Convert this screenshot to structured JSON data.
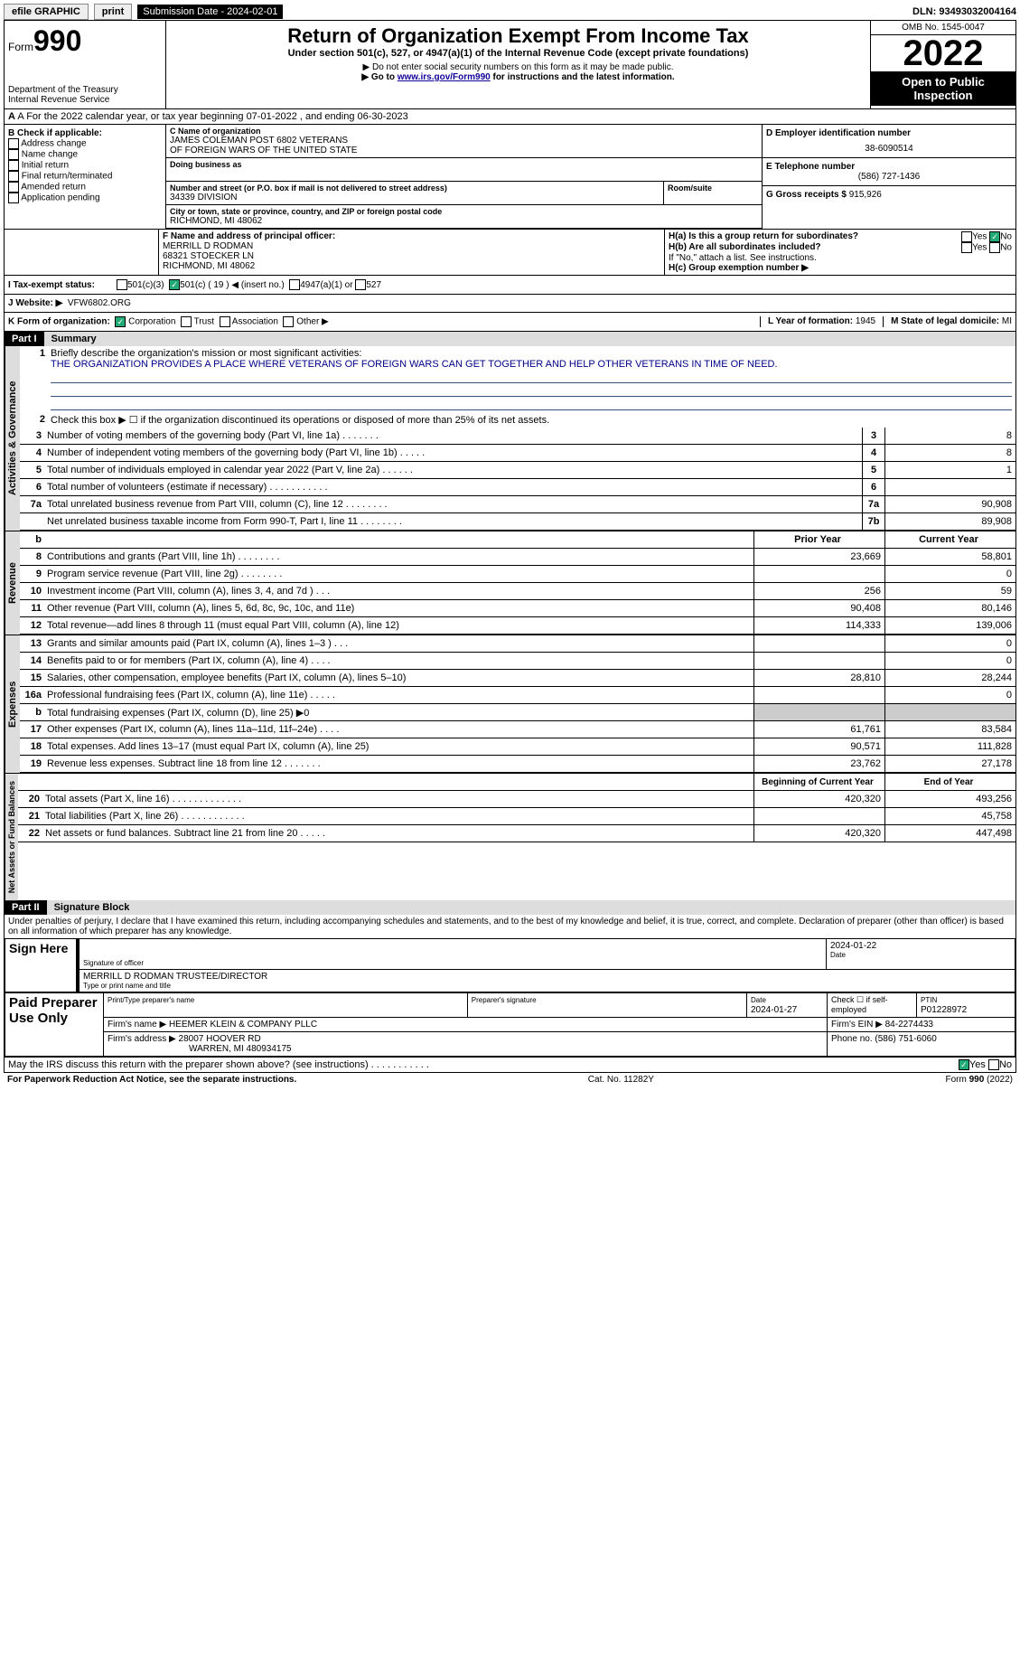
{
  "topbar": {
    "efile": "efile GRAPHIC",
    "print": "print",
    "subdate_lbl": "Submission Date - 2024-02-01",
    "dln": "DLN: 93493032004164"
  },
  "header": {
    "form_word": "Form",
    "form_num": "990",
    "title": "Return of Organization Exempt From Income Tax",
    "subtitle": "Under section 501(c), 527, or 4947(a)(1) of the Internal Revenue Code (except private foundations)",
    "note1": "▶ Do not enter social security numbers on this form as it may be made public.",
    "note2_pre": "▶ Go to ",
    "note2_link": "www.irs.gov/Form990",
    "note2_post": " for instructions and the latest information.",
    "dept": "Department of the Treasury",
    "irs": "Internal Revenue Service",
    "omb": "OMB No. 1545-0047",
    "year": "2022",
    "otp1": "Open to Public",
    "otp2": "Inspection"
  },
  "rowA": "A For the 2022 calendar year, or tax year beginning 07-01-2022    , and ending 06-30-2023",
  "colB": {
    "hdr": "B Check if applicable:",
    "items": [
      "Address change",
      "Name change",
      "Initial return",
      "Final return/terminated",
      "Amended return",
      "Application pending"
    ]
  },
  "colC": {
    "c_lbl": "C Name of organization",
    "name1": "JAMES COLEMAN POST 6802 VETERANS",
    "name2": "OF FOREIGN WARS OF THE UNITED STATE",
    "dba": "Doing business as",
    "street_lbl": "Number and street (or P.O. box if mail is not delivered to street address)",
    "room_lbl": "Room/suite",
    "street": "34339 DIVISION",
    "city_lbl": "City or town, state or province, country, and ZIP or foreign postal code",
    "city": "RICHMOND, MI  48062",
    "f_lbl": "F Name and address of principal officer:",
    "f1": "MERRILL D RODMAN",
    "f2": "68321 STOECKER LN",
    "f3": "RICHMOND, MI  48062"
  },
  "colDE": {
    "d_lbl": "D Employer identification number",
    "ein": "38-6090514",
    "e_lbl": "E Telephone number",
    "phone": "(586) 727-1436",
    "g_lbl": "G Gross receipts $",
    "g_val": "915,926"
  },
  "rowH": {
    "ha": "H(a)  Is this a group return for subordinates?",
    "hb": "H(b)  Are all subordinates included?",
    "hb_note": "If \"No,\" attach a list. See instructions.",
    "hc": "H(c)  Group exemption number ▶",
    "yes": "Yes",
    "no": "No"
  },
  "rowI": {
    "lbl": "I   Tax-exempt status:",
    "o1": "501(c)(3)",
    "o2": "501(c) ( 19 ) ◀ (insert no.)",
    "o3": "4947(a)(1) or",
    "o4": "527"
  },
  "rowJ": {
    "lbl": "J   Website: ▶",
    "val": "VFW6802.ORG"
  },
  "rowK": {
    "lbl": "K Form of organization:",
    "corp": "Corporation",
    "trust": "Trust",
    "assoc": "Association",
    "other": "Other ▶",
    "l_lbl": "L Year of formation:",
    "l_val": "1945",
    "m_lbl": "M State of legal domicile:",
    "m_val": "MI"
  },
  "part1": {
    "hdr": "Part I",
    "title": "Summary"
  },
  "summary": {
    "l1_lbl": "Briefly describe the organization's mission or most significant activities:",
    "l1_txt": "THE ORGANIZATION PROVIDES A PLACE WHERE VETERANS OF FOREIGN WARS CAN GET TOGETHER AND HELP OTHER VETERANS IN TIME OF NEED.",
    "l2": "Check this box ▶ ☐ if the organization discontinued its operations or disposed of more than 25% of its net assets.",
    "lines_single": [
      {
        "n": "3",
        "t": "Number of voting members of the governing body (Part VI, line 1a)   .    .    .    .    .    .    .",
        "b": "3",
        "v": "8"
      },
      {
        "n": "4",
        "t": "Number of independent voting members of the governing body (Part VI, line 1b)   .    .    .    .    .",
        "b": "4",
        "v": "8"
      },
      {
        "n": "5",
        "t": "Total number of individuals employed in calendar year 2022 (Part V, line 2a)   .    .    .    .    .    .",
        "b": "5",
        "v": "1"
      },
      {
        "n": "6",
        "t": "Total number of volunteers (estimate if necessary)     .    .    .    .    .    .    .    .    .    .    .",
        "b": "6",
        "v": ""
      },
      {
        "n": "7a",
        "t": "Total unrelated business revenue from Part VIII, column (C), line 12    .    .    .    .    .    .    .    .",
        "b": "7a",
        "v": "90,908"
      },
      {
        "n": "",
        "t": "Net unrelated business taxable income from Form 990-T, Part I, line 11  .    .    .    .    .    .    .    .",
        "b": "7b",
        "v": "89,908"
      }
    ],
    "col_hdr": {
      "py": "Prior Year",
      "cy": "Current Year",
      "bcy": "Beginning of Current Year",
      "eoy": "End of Year"
    },
    "rev": [
      {
        "n": "8",
        "t": "Contributions and grants (Part VIII, line 1h)    .    .    .    .    .    .    .    .",
        "p": "23,669",
        "c": "58,801"
      },
      {
        "n": "9",
        "t": "Program service revenue (Part VIII, line 2g)   .    .    .    .    .    .    .    .",
        "p": "",
        "c": "0"
      },
      {
        "n": "10",
        "t": "Investment income (Part VIII, column (A), lines 3, 4, and 7d )    .    .    .",
        "p": "256",
        "c": "59"
      },
      {
        "n": "11",
        "t": "Other revenue (Part VIII, column (A), lines 5, 6d, 8c, 9c, 10c, and 11e)",
        "p": "90,408",
        "c": "80,146"
      },
      {
        "n": "12",
        "t": "Total revenue—add lines 8 through 11 (must equal Part VIII, column (A), line 12)",
        "p": "114,333",
        "c": "139,006"
      }
    ],
    "exp": [
      {
        "n": "13",
        "t": "Grants and similar amounts paid (Part IX, column (A), lines 1–3 )   .    .    .",
        "p": "",
        "c": "0"
      },
      {
        "n": "14",
        "t": "Benefits paid to or for members (Part IX, column (A), line 4)   .    .    .    .",
        "p": "",
        "c": "0"
      },
      {
        "n": "15",
        "t": "Salaries, other compensation, employee benefits (Part IX, column (A), lines 5–10)",
        "p": "28,810",
        "c": "28,244"
      },
      {
        "n": "16a",
        "t": "Professional fundraising fees (Part IX, column (A), line 11e)  .    .    .    .    .",
        "p": "",
        "c": "0"
      },
      {
        "n": "b",
        "t": "Total fundraising expenses (Part IX, column (D), line 25) ▶0",
        "p": "",
        "c": "",
        "shade": true
      },
      {
        "n": "17",
        "t": "Other expenses (Part IX, column (A), lines 11a–11d, 11f–24e)   .    .    .    .",
        "p": "61,761",
        "c": "83,584"
      },
      {
        "n": "18",
        "t": "Total expenses. Add lines 13–17 (must equal Part IX, column (A), line 25)",
        "p": "90,571",
        "c": "111,828"
      },
      {
        "n": "19",
        "t": "Revenue less expenses. Subtract line 18 from line 12  .    .    .    .    .    .    .",
        "p": "23,762",
        "c": "27,178"
      }
    ],
    "na": [
      {
        "n": "20",
        "t": "Total assets (Part X, line 16)  .    .    .    .    .    .    .    .    .    .    .    .    .",
        "p": "420,320",
        "c": "493,256"
      },
      {
        "n": "21",
        "t": "Total liabilities (Part X, line 26)  .    .    .    .    .    .    .    .    .    .    .    .",
        "p": "",
        "c": "45,758"
      },
      {
        "n": "22",
        "t": "Net assets or fund balances. Subtract line 21 from line 20   .    .    .    .    .",
        "p": "420,320",
        "c": "447,498"
      }
    ]
  },
  "vtabs": {
    "ag": "Activities & Governance",
    "rev": "Revenue",
    "exp": "Expenses",
    "na": "Net Assets or Fund Balances"
  },
  "part2": {
    "hdr": "Part II",
    "title": "Signature Block"
  },
  "sig": {
    "perjury": "Under penalties of perjury, I declare that I have examined this return, including accompanying schedules and statements, and to the best of my knowledge and belief, it is true, correct, and complete. Declaration of preparer (other than officer) is based on all information of which preparer has any knowledge.",
    "sign_here": "Sign Here",
    "sig_officer": "Signature of officer",
    "sig_date": "2024-01-22",
    "date_lbl": "Date",
    "officer_name": "MERRILL D RODMAN  TRUSTEE/DIRECTOR",
    "type_name": "Type or print name and title",
    "paid": "Paid Preparer Use Only",
    "prep_name_lbl": "Print/Type preparer's name",
    "prep_sig_lbl": "Preparer's signature",
    "prep_date_lbl": "Date",
    "prep_date": "2024-01-27",
    "check_self": "Check ☐ if self-employed",
    "ptin_lbl": "PTIN",
    "ptin": "P01228972",
    "firm_name_lbl": "Firm's name    ▶",
    "firm_name": "HEEMER KLEIN & COMPANY PLLC",
    "firm_ein_lbl": "Firm's EIN ▶",
    "firm_ein": "84-2274433",
    "firm_addr_lbl": "Firm's address ▶",
    "firm_addr1": "28007 HOOVER RD",
    "firm_addr2": "WARREN, MI  480934175",
    "firm_phone_lbl": "Phone no.",
    "firm_phone": "(586) 751-6060",
    "discuss": "May the IRS discuss this return with the preparer shown above? (see instructions)   .    .    .    .    .    .    .    .    .    .    .",
    "yes": "Yes",
    "no": "No"
  },
  "footer": {
    "pra": "For Paperwork Reduction Act Notice, see the separate instructions.",
    "cat": "Cat. No. 11282Y",
    "ref": "Form 990 (2022)"
  }
}
